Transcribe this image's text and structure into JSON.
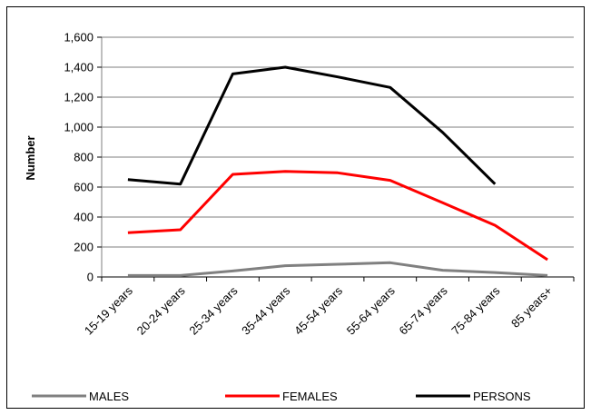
{
  "chart_data": {
    "type": "line",
    "title": "",
    "xlabel": "",
    "ylabel": "Number",
    "ylim": [
      0,
      1600
    ],
    "yticks": [
      0,
      200,
      400,
      600,
      800,
      1000,
      1200,
      1400,
      1600
    ],
    "ytick_labels": [
      "0",
      "200",
      "400",
      "600",
      "800",
      "1,000",
      "1,200",
      "1,400",
      "1,600"
    ],
    "grid": true,
    "legend_position": "bottom",
    "categories": [
      "15-19 years",
      "20-24 years",
      "25-34 years",
      "35-44 years",
      "45-54 years",
      "55-64 years",
      "65-74 years",
      "75-84 years",
      "85 years+"
    ],
    "series": [
      {
        "name": "MALES",
        "color": "#808080",
        "values": [
          10,
          10,
          40,
          75,
          85,
          95,
          45,
          30,
          10
        ]
      },
      {
        "name": "FEMALES",
        "color": "#ff0000",
        "values": [
          295,
          315,
          685,
          705,
          695,
          645,
          495,
          345,
          115
        ]
      },
      {
        "name": "PERSONS",
        "color": "#000000",
        "values": [
          650,
          620,
          1355,
          1400,
          1335,
          1265,
          965,
          620,
          null
        ]
      }
    ]
  }
}
